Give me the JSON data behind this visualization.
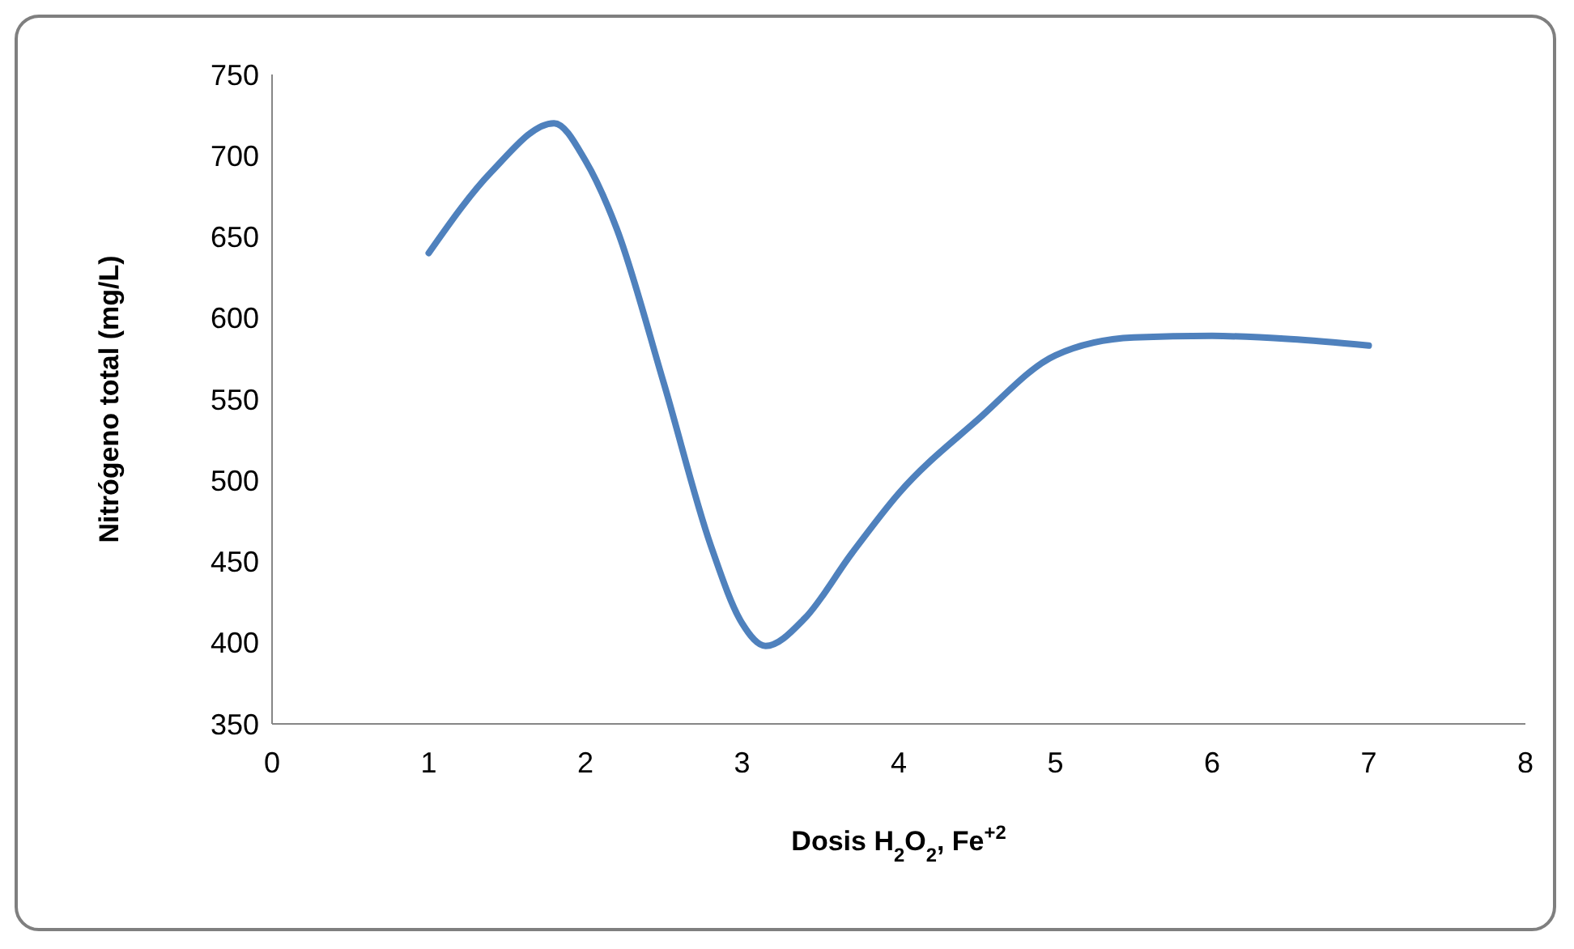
{
  "chart_data": {
    "type": "line",
    "xlabel": "Dosis H$_{2}$O$_{2}$, Fe$^{+2}$",
    "ylabel": "Nitrógeno total (mg/L)",
    "series": [
      {
        "color": "#4f81bd",
        "x": [
          1,
          1.4,
          1.8,
          2,
          2.2,
          2.5,
          2.8,
          3,
          3.15,
          3.4,
          3.7,
          4,
          4.5,
          5,
          5.5,
          6,
          6.5,
          7
        ],
        "values": [
          640,
          690,
          720,
          697,
          655,
          560,
          460,
          412,
          398,
          415,
          455,
          492,
          537,
          577,
          588,
          589,
          587,
          583
        ]
      }
    ],
    "xlim": [
      0,
      8
    ],
    "xticks": [
      0,
      1,
      2,
      3,
      4,
      5,
      6,
      7,
      8
    ],
    "ylim": [
      350,
      750
    ],
    "yticks": [
      350,
      400,
      450,
      500,
      550,
      600,
      650,
      700,
      750
    ],
    "grid": false,
    "marker": "none",
    "line_style": "solid"
  }
}
